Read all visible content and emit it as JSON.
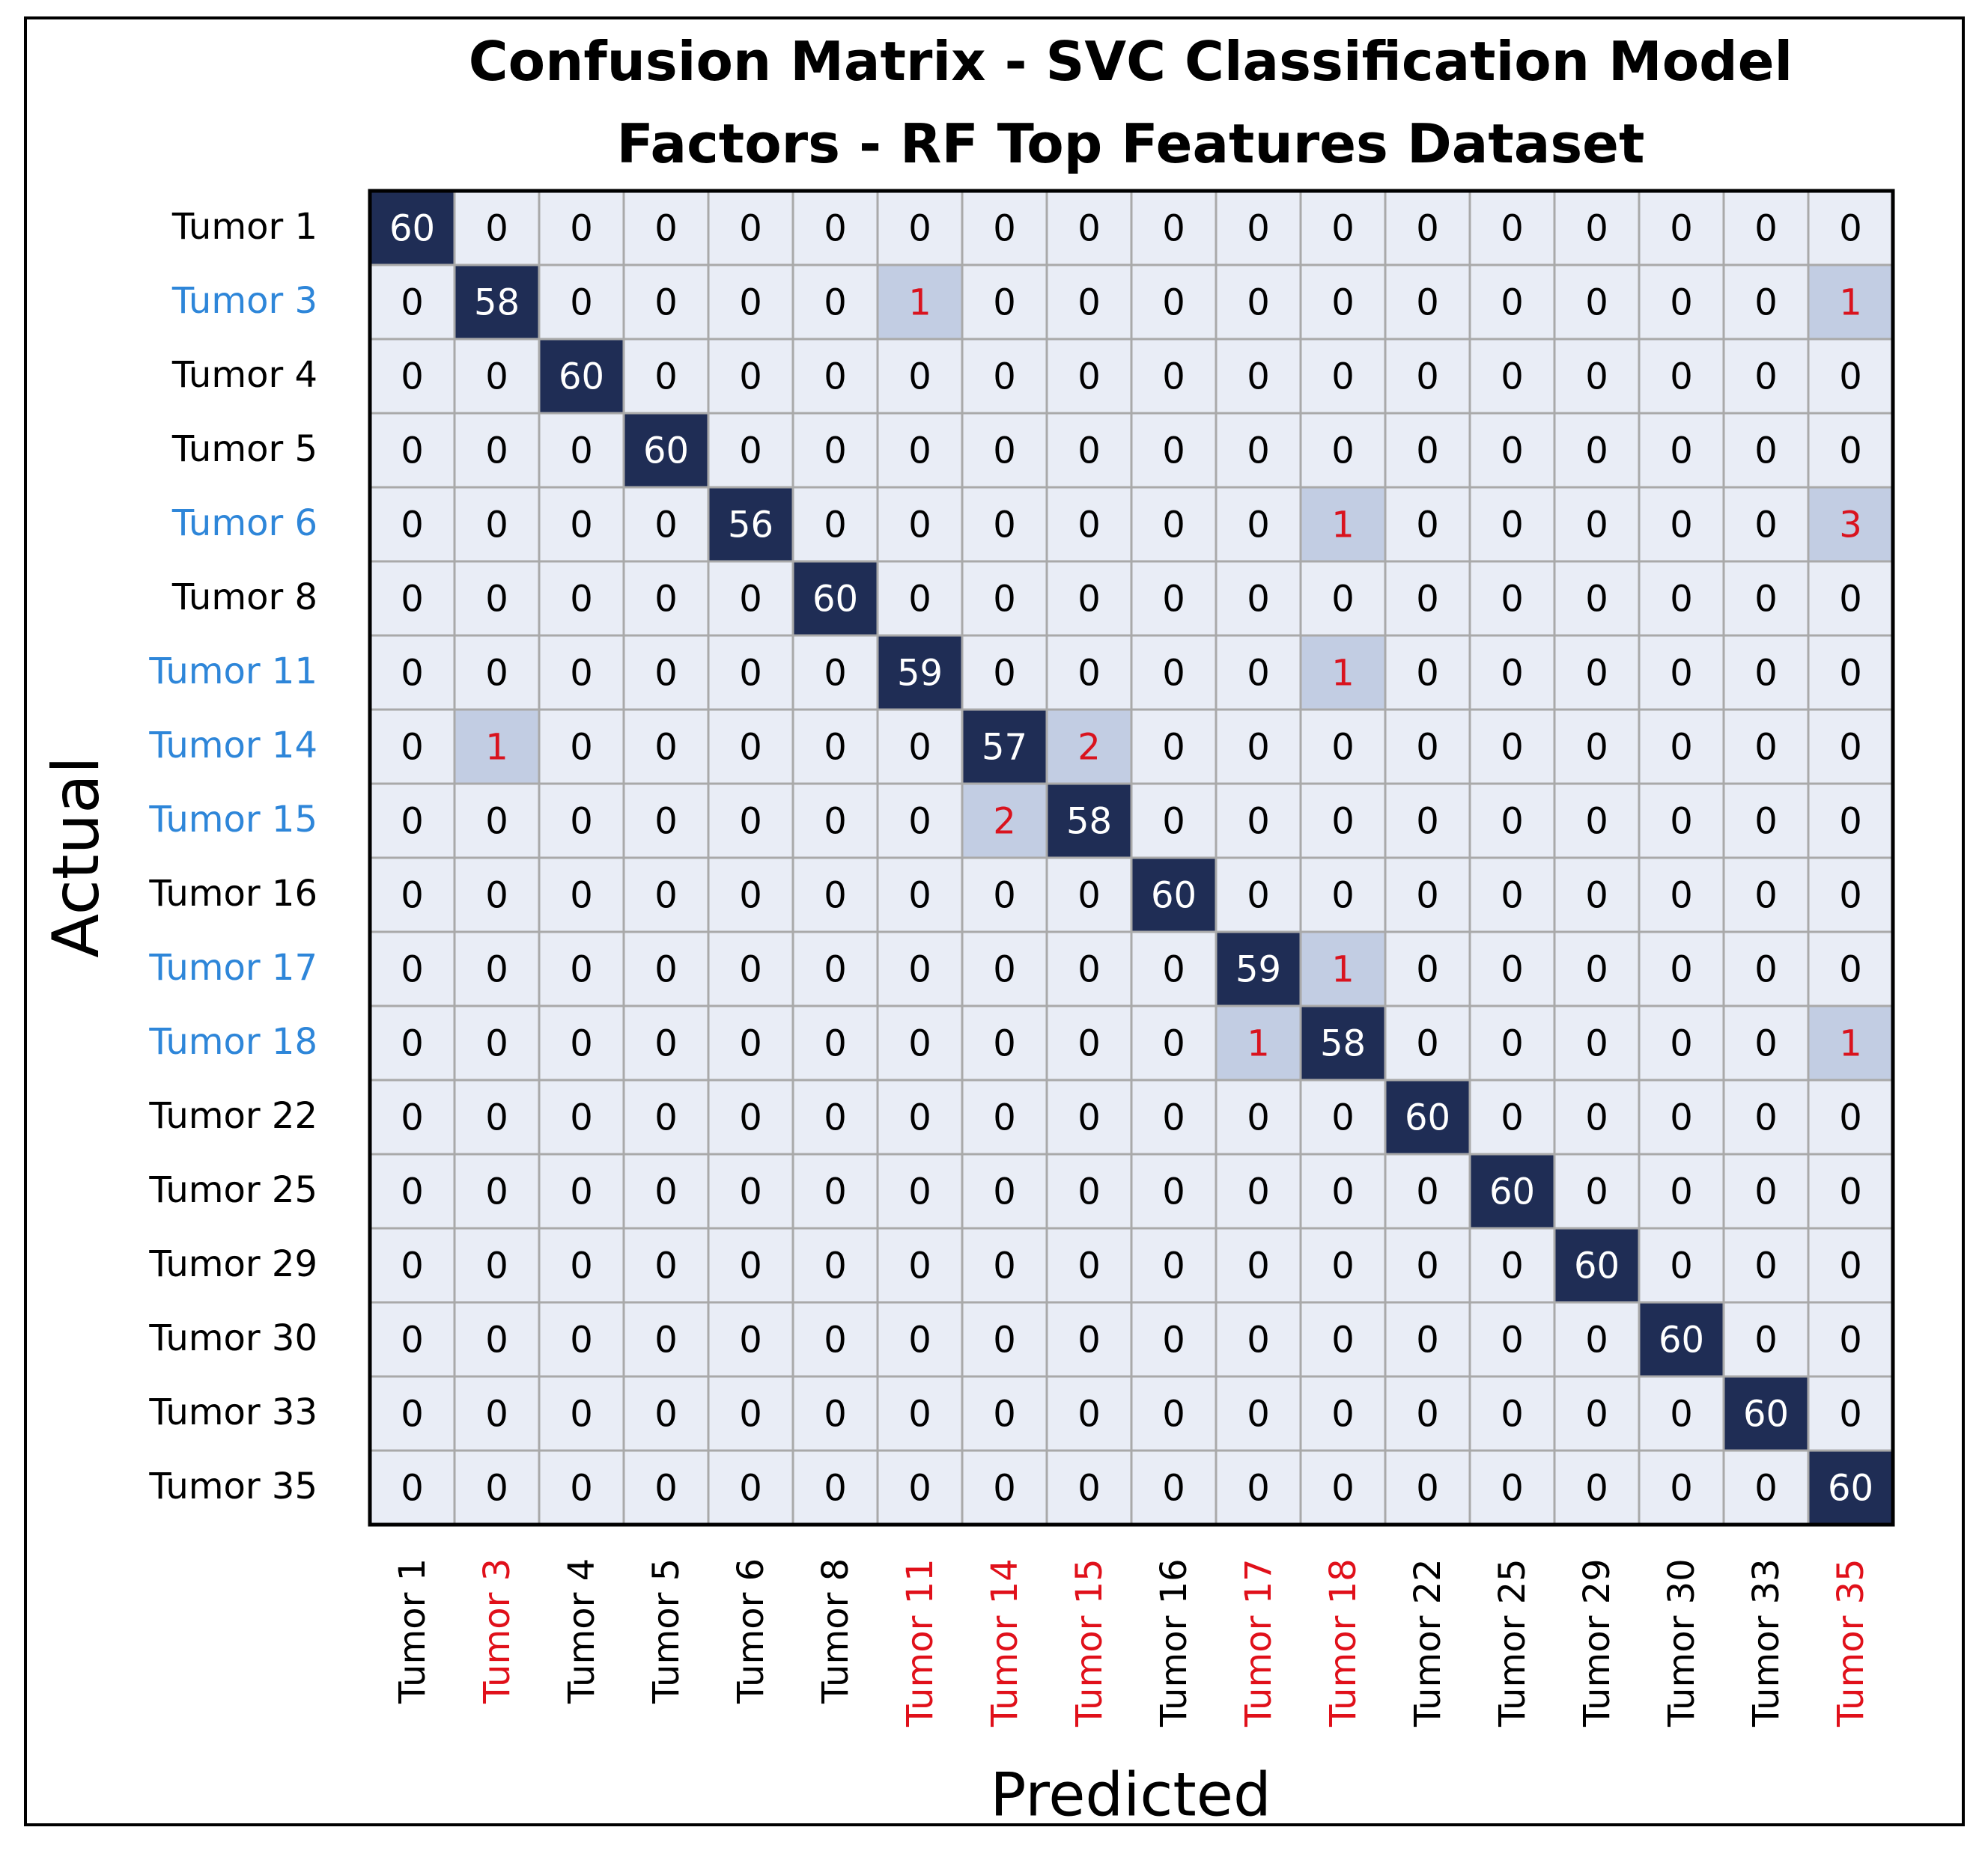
{
  "chart_data": {
    "type": "heatmap",
    "title": "Confusion Matrix - SVC Classification Model",
    "subtitle": "Factors - RF Top Features Dataset",
    "xlabel": "Predicted",
    "ylabel": "Actual",
    "row_labels": [
      "Tumor 1",
      "Tumor 3",
      "Tumor 4",
      "Tumor 5",
      "Tumor 6",
      "Tumor 8",
      "Tumor 11",
      "Tumor 14",
      "Tumor 15",
      "Tumor 16",
      "Tumor 17",
      "Tumor 18",
      "Tumor 22",
      "Tumor 25",
      "Tumor 29",
      "Tumor 30",
      "Tumor 33",
      "Tumor 35"
    ],
    "col_labels": [
      "Tumor 1",
      "Tumor 3",
      "Tumor 4",
      "Tumor 5",
      "Tumor 6",
      "Tumor 8",
      "Tumor 11",
      "Tumor 14",
      "Tumor 15",
      "Tumor 16",
      "Tumor 17",
      "Tumor 18",
      "Tumor 22",
      "Tumor 25",
      "Tumor 29",
      "Tumor 30",
      "Tumor 33",
      "Tumor 35"
    ],
    "highlighted_rows": [
      1,
      4,
      6,
      7,
      8,
      10,
      11
    ],
    "highlighted_cols": [
      1,
      6,
      7,
      8,
      10,
      11,
      17
    ],
    "matrix": [
      [
        60,
        0,
        0,
        0,
        0,
        0,
        0,
        0,
        0,
        0,
        0,
        0,
        0,
        0,
        0,
        0,
        0,
        0
      ],
      [
        0,
        58,
        0,
        0,
        0,
        0,
        1,
        0,
        0,
        0,
        0,
        0,
        0,
        0,
        0,
        0,
        0,
        1
      ],
      [
        0,
        0,
        60,
        0,
        0,
        0,
        0,
        0,
        0,
        0,
        0,
        0,
        0,
        0,
        0,
        0,
        0,
        0
      ],
      [
        0,
        0,
        0,
        60,
        0,
        0,
        0,
        0,
        0,
        0,
        0,
        0,
        0,
        0,
        0,
        0,
        0,
        0
      ],
      [
        0,
        0,
        0,
        0,
        56,
        0,
        0,
        0,
        0,
        0,
        0,
        1,
        0,
        0,
        0,
        0,
        0,
        3
      ],
      [
        0,
        0,
        0,
        0,
        0,
        60,
        0,
        0,
        0,
        0,
        0,
        0,
        0,
        0,
        0,
        0,
        0,
        0
      ],
      [
        0,
        0,
        0,
        0,
        0,
        0,
        59,
        0,
        0,
        0,
        0,
        1,
        0,
        0,
        0,
        0,
        0,
        0
      ],
      [
        0,
        1,
        0,
        0,
        0,
        0,
        0,
        57,
        2,
        0,
        0,
        0,
        0,
        0,
        0,
        0,
        0,
        0
      ],
      [
        0,
        0,
        0,
        0,
        0,
        0,
        0,
        2,
        58,
        0,
        0,
        0,
        0,
        0,
        0,
        0,
        0,
        0
      ],
      [
        0,
        0,
        0,
        0,
        0,
        0,
        0,
        0,
        0,
        60,
        0,
        0,
        0,
        0,
        0,
        0,
        0,
        0
      ],
      [
        0,
        0,
        0,
        0,
        0,
        0,
        0,
        0,
        0,
        0,
        59,
        1,
        0,
        0,
        0,
        0,
        0,
        0
      ],
      [
        0,
        0,
        0,
        0,
        0,
        0,
        0,
        0,
        0,
        0,
        1,
        58,
        0,
        0,
        0,
        0,
        0,
        1
      ],
      [
        0,
        0,
        0,
        0,
        0,
        0,
        0,
        0,
        0,
        0,
        0,
        0,
        60,
        0,
        0,
        0,
        0,
        0
      ],
      [
        0,
        0,
        0,
        0,
        0,
        0,
        0,
        0,
        0,
        0,
        0,
        0,
        0,
        60,
        0,
        0,
        0,
        0
      ],
      [
        0,
        0,
        0,
        0,
        0,
        0,
        0,
        0,
        0,
        0,
        0,
        0,
        0,
        0,
        60,
        0,
        0,
        0
      ],
      [
        0,
        0,
        0,
        0,
        0,
        0,
        0,
        0,
        0,
        0,
        0,
        0,
        0,
        0,
        0,
        60,
        0,
        0
      ],
      [
        0,
        0,
        0,
        0,
        0,
        0,
        0,
        0,
        0,
        0,
        0,
        0,
        0,
        0,
        0,
        0,
        60,
        0
      ],
      [
        0,
        0,
        0,
        0,
        0,
        0,
        0,
        0,
        0,
        0,
        0,
        0,
        0,
        0,
        0,
        0,
        0,
        60
      ]
    ],
    "colors": {
      "diagonal_fill": "#1f2d55",
      "diagonal_text": "#ffffff",
      "error_fill": "#c2cde3",
      "error_text": "#d9131e",
      "zero_fill": "#e9edf6",
      "zero_text": "#000000",
      "grid_line": "#a9a9a9",
      "highlight_row_label": "#2e86d9",
      "highlight_col_label": "#e0101a",
      "normal_label": "#000000"
    }
  }
}
